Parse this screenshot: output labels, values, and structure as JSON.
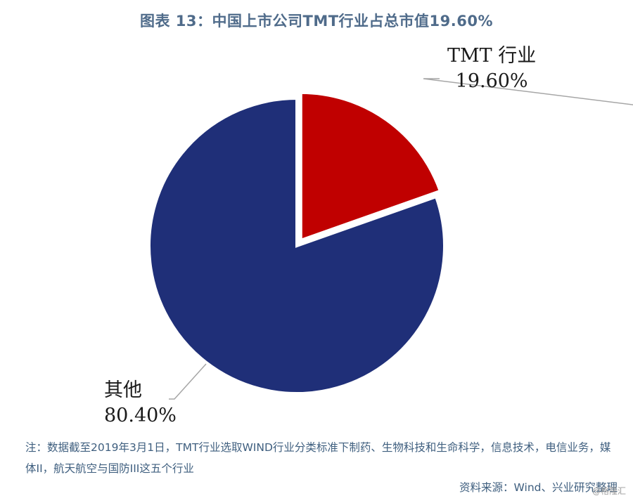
{
  "title": "图表 13：中国上市公司TMT行业占总市值19.60%",
  "chart_data": {
    "type": "pie",
    "slices": [
      {
        "label_name": "TMT 行业",
        "label_value": "19.60%",
        "value": 19.6,
        "color": "#c00000",
        "exploded": true
      },
      {
        "label_name": "其他",
        "label_value": "80.40%",
        "value": 80.4,
        "color": "#1f2f78",
        "exploded": false
      }
    ]
  },
  "note": "注：数据截至2019年3月1日，TMT行业选取WIND行业分类标准下制药、生物科技和生命科学，信息技术，电信业务，媒体II，航天航空与国防III这五个行业",
  "source": "资料来源：Wind、兴业研究整理",
  "watermark": "@格隆汇"
}
